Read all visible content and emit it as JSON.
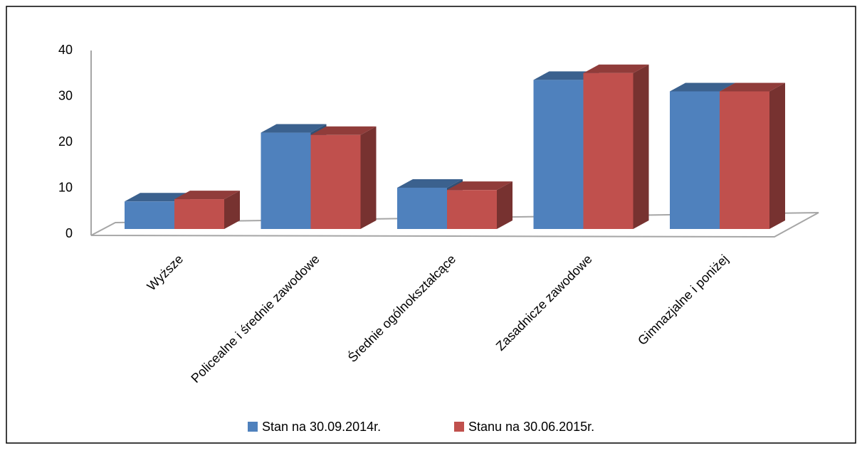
{
  "chart_data": {
    "type": "bar3d",
    "categories": [
      "Wyższe",
      "Policealne i średnie zawodowe",
      "Średnie ogólnokształcące",
      "Zasadnicze zawodowe",
      "Gimnazjalne  i poniżej"
    ],
    "series": [
      {
        "name": "Stan na 30.09.2014r.",
        "color": "#4f81bd",
        "values": [
          6,
          21,
          9,
          32.5,
          30
        ]
      },
      {
        "name": "Stanu na 30.06.2015r.",
        "color": "#c0504d",
        "values": [
          6.5,
          20.5,
          8.5,
          34,
          30
        ]
      }
    ],
    "ylim": [
      0,
      40
    ],
    "yticks": [
      0,
      10,
      20,
      30,
      40
    ],
    "grid": false,
    "legend": "bottom"
  }
}
